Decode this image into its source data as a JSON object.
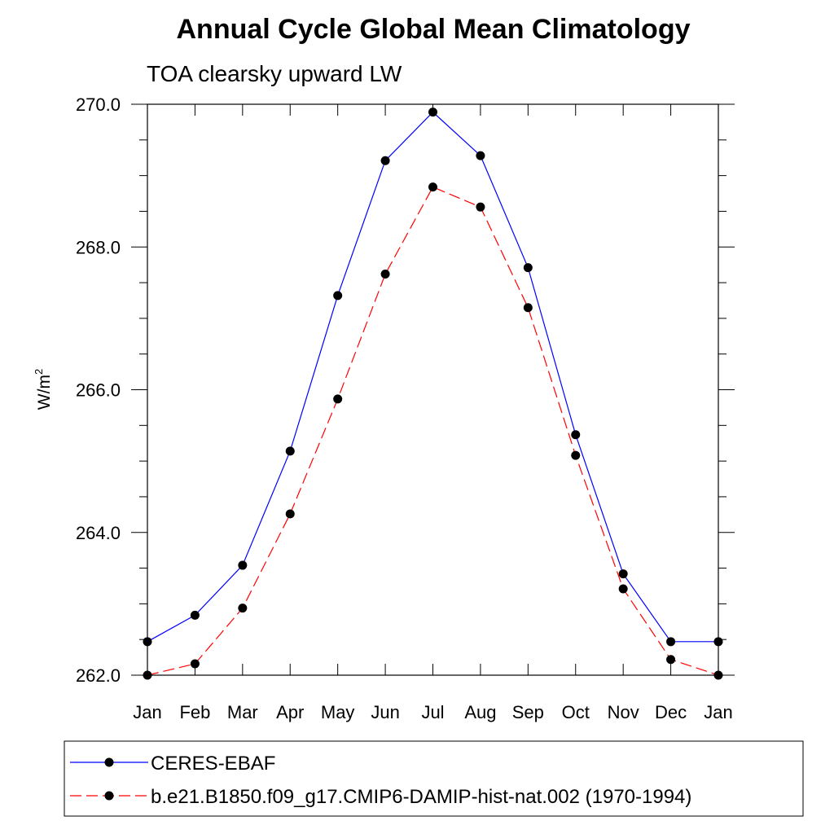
{
  "chart_data": {
    "type": "line",
    "title": "Annual Cycle Global Mean Climatology",
    "subtitle": "TOA clearsky upward LW",
    "xlabel": "",
    "ylabel": "W/m",
    "ylabel_superscript": "2",
    "categories": [
      "Jan",
      "Feb",
      "Mar",
      "Apr",
      "May",
      "Jun",
      "Jul",
      "Aug",
      "Sep",
      "Oct",
      "Nov",
      "Dec",
      "Jan"
    ],
    "ylim": [
      262.0,
      270.0
    ],
    "yticks_major": [
      "262.0",
      "264.0",
      "266.0",
      "268.0",
      "270.0"
    ],
    "ytick_minor_step": 0.5,
    "grid": false,
    "legend_position": "bottom",
    "series": [
      {
        "name": "CERES-EBAF",
        "color": "#0000ff",
        "dash": "solid",
        "marker_color": "#000000",
        "values": [
          262.47,
          262.84,
          263.54,
          265.14,
          267.32,
          269.21,
          269.89,
          269.28,
          267.71,
          265.37,
          263.42,
          262.47,
          262.47
        ]
      },
      {
        "name": "b.e21.B1850.f09_g17.CMIP6-DAMIP-hist-nat.002 (1970-1994)",
        "color": "#ff0000",
        "dash": "dashed",
        "marker_color": "#000000",
        "values": [
          262.0,
          262.16,
          262.94,
          264.26,
          265.87,
          267.62,
          268.84,
          268.56,
          267.15,
          265.08,
          263.21,
          262.22,
          262.0
        ]
      }
    ]
  }
}
